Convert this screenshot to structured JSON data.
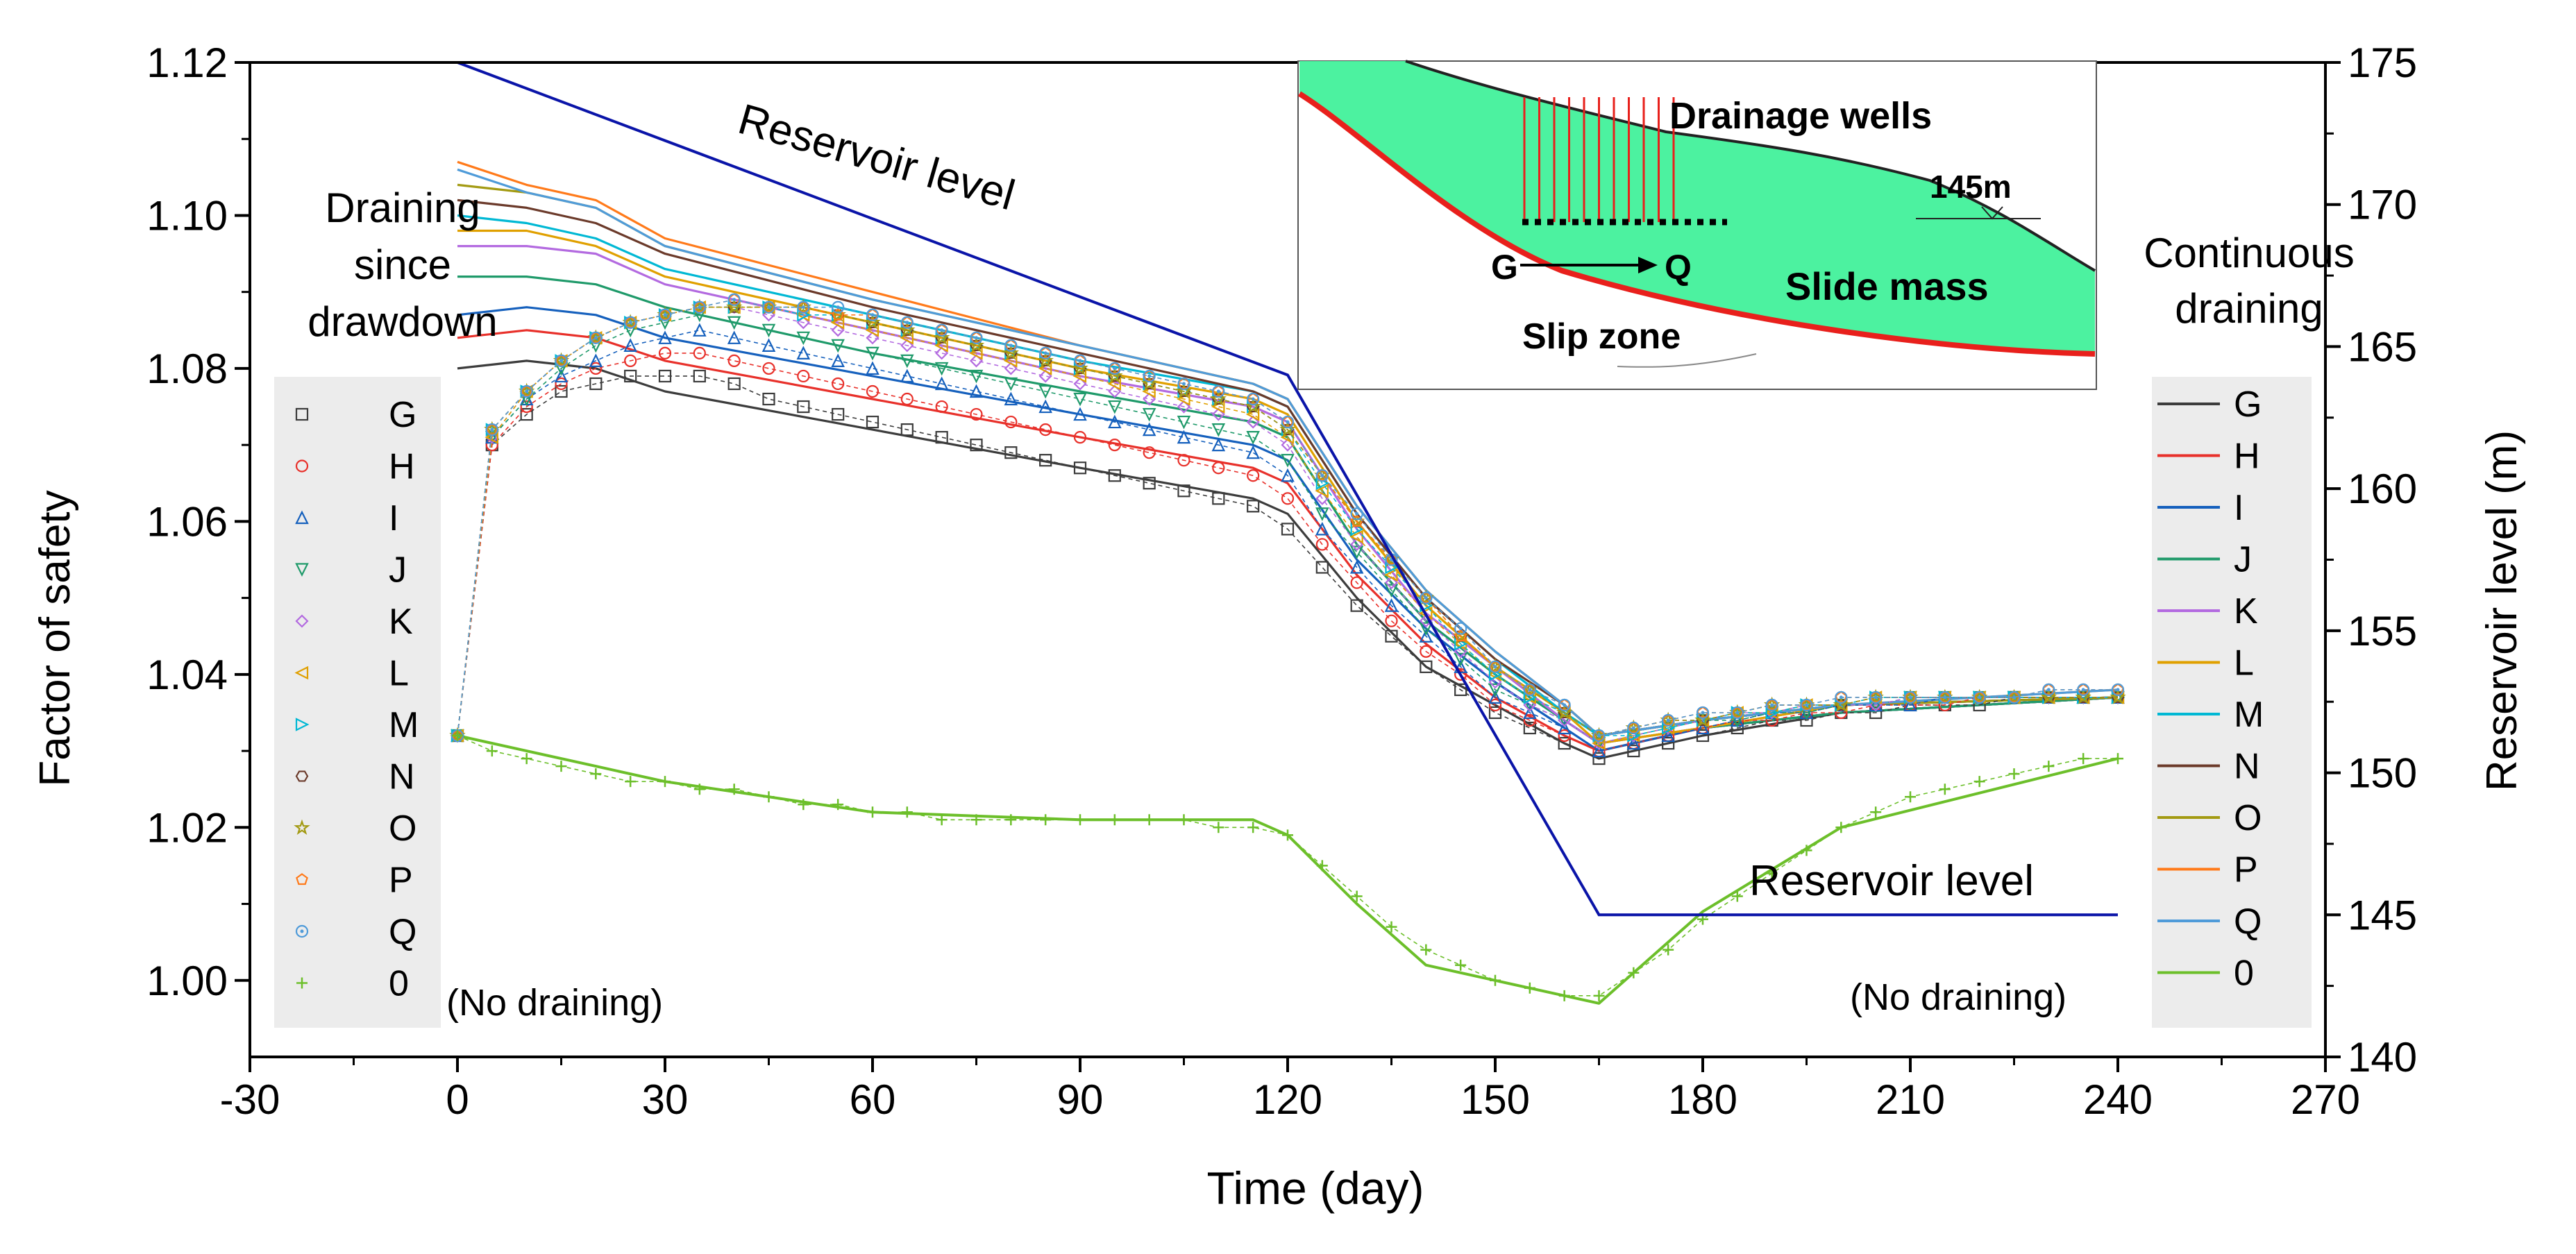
{
  "chart_data": {
    "type": "line",
    "xlabel": "Time (day)",
    "ylabel": "Factor of safety",
    "y2label": "Reservoir level (m)",
    "xlim": [
      -30,
      270
    ],
    "ylim": [
      0.99,
      1.12
    ],
    "y2lim": [
      140,
      175
    ],
    "xticks": [
      -30,
      0,
      30,
      60,
      90,
      120,
      150,
      180,
      210,
      240,
      270
    ],
    "yticks": [
      1.0,
      1.02,
      1.04,
      1.06,
      1.08,
      1.1,
      1.12
    ],
    "y2ticks": [
      140,
      145,
      150,
      155,
      160,
      165,
      170,
      175
    ],
    "grid": false,
    "colors": {
      "G": "#3c3c3c",
      "H": "#e8302a",
      "I": "#1560bd",
      "J": "#1f9a6a",
      "K": "#b36ae0",
      "L": "#e0a000",
      "M": "#00b8d4",
      "N": "#6b3a2a",
      "O": "#a39a12",
      "P": "#ff7a1a",
      "Q": "#4f9bd9",
      "0": "#6cbf2a",
      "reservoir": "#0a14a8"
    },
    "x_marker": [
      0,
      5,
      10,
      15,
      20,
      25,
      30,
      35,
      40,
      45,
      50,
      55,
      60,
      65,
      70,
      75,
      80,
      85,
      90,
      95,
      100,
      105,
      110,
      115,
      120,
      125,
      130,
      135,
      140,
      145,
      150,
      155,
      160,
      165,
      170,
      175,
      180,
      185,
      190,
      195,
      200,
      205,
      210,
      215,
      220,
      225,
      230,
      235,
      240
    ],
    "x_line": [
      0,
      10,
      20,
      30,
      60,
      90,
      115,
      120,
      130,
      140,
      150,
      160,
      165,
      180,
      200,
      240
    ],
    "series_draining_since_drawdown": [
      {
        "name": "G",
        "marker": "square",
        "values": [
          1.032,
          1.07,
          1.074,
          1.077,
          1.078,
          1.079,
          1.079,
          1.079,
          1.078,
          1.076,
          1.075,
          1.074,
          1.073,
          1.072,
          1.071,
          1.07,
          1.069,
          1.068,
          1.067,
          1.066,
          1.065,
          1.064,
          1.063,
          1.062,
          1.059,
          1.054,
          1.049,
          1.045,
          1.041,
          1.038,
          1.035,
          1.033,
          1.031,
          1.029,
          1.03,
          1.031,
          1.032,
          1.033,
          1.034,
          1.034,
          1.035,
          1.035,
          1.036,
          1.036,
          1.036,
          1.037,
          1.037,
          1.037,
          1.037
        ]
      },
      {
        "name": "H",
        "marker": "circle",
        "values": [
          1.032,
          1.07,
          1.075,
          1.078,
          1.08,
          1.081,
          1.082,
          1.082,
          1.081,
          1.08,
          1.079,
          1.078,
          1.077,
          1.076,
          1.075,
          1.074,
          1.073,
          1.072,
          1.071,
          1.07,
          1.069,
          1.068,
          1.067,
          1.066,
          1.063,
          1.057,
          1.052,
          1.047,
          1.043,
          1.04,
          1.036,
          1.034,
          1.032,
          1.03,
          1.031,
          1.032,
          1.033,
          1.034,
          1.034,
          1.035,
          1.035,
          1.036,
          1.036,
          1.036,
          1.037,
          1.037,
          1.037,
          1.037,
          1.037
        ]
      },
      {
        "name": "I",
        "marker": "triangle-up",
        "values": [
          1.032,
          1.071,
          1.076,
          1.079,
          1.081,
          1.083,
          1.084,
          1.085,
          1.084,
          1.083,
          1.082,
          1.081,
          1.08,
          1.079,
          1.078,
          1.077,
          1.076,
          1.075,
          1.074,
          1.073,
          1.072,
          1.071,
          1.07,
          1.069,
          1.066,
          1.059,
          1.054,
          1.049,
          1.045,
          1.041,
          1.037,
          1.035,
          1.033,
          1.03,
          1.031,
          1.032,
          1.033,
          1.034,
          1.035,
          1.035,
          1.036,
          1.036,
          1.036,
          1.037,
          1.037,
          1.037,
          1.037,
          1.037,
          1.037
        ]
      },
      {
        "name": "J",
        "marker": "triangle-down",
        "values": [
          1.032,
          1.071,
          1.076,
          1.08,
          1.083,
          1.085,
          1.086,
          1.087,
          1.086,
          1.085,
          1.084,
          1.083,
          1.082,
          1.081,
          1.08,
          1.079,
          1.078,
          1.077,
          1.076,
          1.075,
          1.074,
          1.073,
          1.072,
          1.071,
          1.068,
          1.061,
          1.056,
          1.051,
          1.046,
          1.042,
          1.038,
          1.036,
          1.034,
          1.031,
          1.032,
          1.033,
          1.034,
          1.034,
          1.035,
          1.035,
          1.036,
          1.036,
          1.037,
          1.037,
          1.037,
          1.037,
          1.037,
          1.037,
          1.037
        ]
      },
      {
        "name": "K",
        "marker": "diamond",
        "values": [
          1.032,
          1.071,
          1.077,
          1.081,
          1.084,
          1.086,
          1.087,
          1.088,
          1.088,
          1.087,
          1.086,
          1.085,
          1.084,
          1.083,
          1.082,
          1.081,
          1.08,
          1.079,
          1.078,
          1.077,
          1.076,
          1.075,
          1.074,
          1.073,
          1.07,
          1.063,
          1.057,
          1.052,
          1.047,
          1.043,
          1.039,
          1.036,
          1.034,
          1.031,
          1.032,
          1.033,
          1.034,
          1.035,
          1.035,
          1.036,
          1.036,
          1.036,
          1.037,
          1.037,
          1.037,
          1.037,
          1.037,
          1.037,
          1.037
        ]
      },
      {
        "name": "L",
        "marker": "triangle-left",
        "values": [
          1.032,
          1.071,
          1.077,
          1.081,
          1.084,
          1.086,
          1.087,
          1.088,
          1.088,
          1.088,
          1.087,
          1.086,
          1.085,
          1.084,
          1.083,
          1.082,
          1.081,
          1.08,
          1.079,
          1.078,
          1.077,
          1.076,
          1.075,
          1.074,
          1.071,
          1.064,
          1.058,
          1.053,
          1.048,
          1.044,
          1.04,
          1.037,
          1.035,
          1.031,
          1.032,
          1.033,
          1.034,
          1.035,
          1.035,
          1.036,
          1.036,
          1.037,
          1.037,
          1.037,
          1.037,
          1.037,
          1.037,
          1.037,
          1.037
        ]
      },
      {
        "name": "M",
        "marker": "triangle-right",
        "values": [
          1.032,
          1.072,
          1.077,
          1.081,
          1.084,
          1.086,
          1.087,
          1.088,
          1.088,
          1.088,
          1.087,
          1.087,
          1.086,
          1.085,
          1.084,
          1.083,
          1.082,
          1.081,
          1.08,
          1.079,
          1.078,
          1.077,
          1.076,
          1.075,
          1.072,
          1.065,
          1.059,
          1.054,
          1.049,
          1.044,
          1.04,
          1.037,
          1.035,
          1.032,
          1.032,
          1.033,
          1.034,
          1.035,
          1.035,
          1.036,
          1.036,
          1.037,
          1.037,
          1.037,
          1.037,
          1.037,
          1.037,
          1.037,
          1.037
        ]
      },
      {
        "name": "N",
        "marker": "hexagon",
        "values": [
          1.032,
          1.072,
          1.077,
          1.081,
          1.084,
          1.086,
          1.087,
          1.088,
          1.088,
          1.088,
          1.088,
          1.087,
          1.086,
          1.085,
          1.084,
          1.083,
          1.082,
          1.081,
          1.08,
          1.079,
          1.078,
          1.077,
          1.076,
          1.075,
          1.072,
          1.066,
          1.06,
          1.055,
          1.05,
          1.045,
          1.041,
          1.038,
          1.035,
          1.032,
          1.033,
          1.034,
          1.034,
          1.035,
          1.036,
          1.036,
          1.036,
          1.037,
          1.037,
          1.037,
          1.037,
          1.037,
          1.037,
          1.037,
          1.037
        ]
      },
      {
        "name": "O",
        "marker": "star",
        "values": [
          1.032,
          1.072,
          1.077,
          1.081,
          1.084,
          1.086,
          1.087,
          1.088,
          1.088,
          1.088,
          1.088,
          1.087,
          1.086,
          1.085,
          1.084,
          1.083,
          1.082,
          1.081,
          1.08,
          1.079,
          1.078,
          1.077,
          1.076,
          1.075,
          1.072,
          1.066,
          1.06,
          1.055,
          1.05,
          1.045,
          1.041,
          1.038,
          1.035,
          1.032,
          1.033,
          1.034,
          1.034,
          1.035,
          1.036,
          1.036,
          1.036,
          1.037,
          1.037,
          1.037,
          1.037,
          1.037,
          1.037,
          1.037,
          1.037
        ]
      },
      {
        "name": "P",
        "marker": "pentagon",
        "values": [
          1.032,
          1.072,
          1.077,
          1.081,
          1.084,
          1.086,
          1.087,
          1.088,
          1.089,
          1.088,
          1.088,
          1.087,
          1.087,
          1.086,
          1.085,
          1.084,
          1.083,
          1.082,
          1.081,
          1.08,
          1.079,
          1.078,
          1.077,
          1.076,
          1.073,
          1.066,
          1.06,
          1.055,
          1.05,
          1.045,
          1.041,
          1.038,
          1.036,
          1.032,
          1.033,
          1.034,
          1.035,
          1.035,
          1.036,
          1.036,
          1.037,
          1.037,
          1.037,
          1.037,
          1.037,
          1.037,
          1.038,
          1.038,
          1.038
        ]
      },
      {
        "name": "Q",
        "marker": "circle-dot",
        "values": [
          1.032,
          1.072,
          1.077,
          1.081,
          1.084,
          1.086,
          1.087,
          1.088,
          1.089,
          1.088,
          1.088,
          1.088,
          1.087,
          1.086,
          1.085,
          1.084,
          1.083,
          1.082,
          1.081,
          1.08,
          1.079,
          1.078,
          1.077,
          1.076,
          1.073,
          1.066,
          1.061,
          1.055,
          1.05,
          1.046,
          1.041,
          1.038,
          1.036,
          1.032,
          1.033,
          1.034,
          1.035,
          1.035,
          1.036,
          1.036,
          1.037,
          1.037,
          1.037,
          1.037,
          1.037,
          1.037,
          1.038,
          1.038,
          1.038
        ]
      },
      {
        "name": "0",
        "marker": "plus",
        "values": [
          1.032,
          1.03,
          1.029,
          1.028,
          1.027,
          1.026,
          1.026,
          1.025,
          1.025,
          1.024,
          1.023,
          1.023,
          1.022,
          1.022,
          1.021,
          1.021,
          1.021,
          1.021,
          1.021,
          1.021,
          1.021,
          1.021,
          1.02,
          1.02,
          1.019,
          1.015,
          1.011,
          1.007,
          1.004,
          1.002,
          1.0,
          0.999,
          0.998,
          0.998,
          1.001,
          1.004,
          1.008,
          1.011,
          1.014,
          1.017,
          1.02,
          1.022,
          1.024,
          1.025,
          1.026,
          1.027,
          1.028,
          1.029,
          1.029
        ]
      }
    ],
    "series_continuous_draining": [
      {
        "name": "G",
        "values": [
          1.08,
          1.081,
          1.08,
          1.077,
          1.072,
          1.067,
          1.063,
          1.061,
          1.05,
          1.041,
          1.036,
          1.031,
          1.029,
          1.032,
          1.035,
          1.037
        ]
      },
      {
        "name": "H",
        "values": [
          1.084,
          1.085,
          1.084,
          1.081,
          1.076,
          1.071,
          1.067,
          1.065,
          1.053,
          1.044,
          1.037,
          1.032,
          1.03,
          1.033,
          1.035,
          1.037
        ]
      },
      {
        "name": "I",
        "values": [
          1.087,
          1.088,
          1.087,
          1.084,
          1.079,
          1.074,
          1.07,
          1.068,
          1.055,
          1.046,
          1.039,
          1.033,
          1.03,
          1.033,
          1.035,
          1.037
        ]
      },
      {
        "name": "J",
        "values": [
          1.092,
          1.092,
          1.091,
          1.088,
          1.082,
          1.077,
          1.073,
          1.071,
          1.057,
          1.047,
          1.04,
          1.034,
          1.031,
          1.033,
          1.035,
          1.037
        ]
      },
      {
        "name": "K",
        "values": [
          1.096,
          1.096,
          1.095,
          1.091,
          1.085,
          1.079,
          1.075,
          1.073,
          1.059,
          1.048,
          1.041,
          1.034,
          1.031,
          1.033,
          1.036,
          1.037
        ]
      },
      {
        "name": "L",
        "values": [
          1.098,
          1.098,
          1.096,
          1.092,
          1.086,
          1.08,
          1.076,
          1.074,
          1.06,
          1.049,
          1.041,
          1.035,
          1.031,
          1.033,
          1.036,
          1.037
        ]
      },
      {
        "name": "M",
        "values": [
          1.1,
          1.099,
          1.097,
          1.093,
          1.087,
          1.081,
          1.077,
          1.075,
          1.061,
          1.05,
          1.042,
          1.035,
          1.032,
          1.034,
          1.036,
          1.037
        ]
      },
      {
        "name": "N",
        "values": [
          1.102,
          1.101,
          1.099,
          1.095,
          1.088,
          1.082,
          1.077,
          1.075,
          1.061,
          1.05,
          1.042,
          1.036,
          1.032,
          1.034,
          1.036,
          1.037
        ]
      },
      {
        "name": "O",
        "values": [
          1.104,
          1.103,
          1.101,
          1.096,
          1.089,
          1.083,
          1.078,
          1.076,
          1.062,
          1.051,
          1.043,
          1.036,
          1.032,
          1.034,
          1.036,
          1.037
        ]
      },
      {
        "name": "P",
        "values": [
          1.107,
          1.104,
          1.102,
          1.097,
          1.09,
          1.083,
          1.078,
          1.076,
          1.062,
          1.051,
          1.043,
          1.036,
          1.032,
          1.034,
          1.036,
          1.038
        ]
      },
      {
        "name": "Q",
        "values": [
          1.106,
          1.103,
          1.101,
          1.096,
          1.089,
          1.083,
          1.078,
          1.076,
          1.062,
          1.051,
          1.043,
          1.036,
          1.032,
          1.034,
          1.036,
          1.038
        ]
      },
      {
        "name": "0",
        "values": [
          1.032,
          1.03,
          1.028,
          1.026,
          1.022,
          1.021,
          1.021,
          1.019,
          1.01,
          1.002,
          1.0,
          0.998,
          0.997,
          1.009,
          1.02,
          1.029
        ]
      }
    ],
    "reservoir_level": {
      "name": "Reservoir level",
      "x": [
        0,
        120,
        165,
        240
      ],
      "values": [
        175,
        164,
        145,
        145
      ]
    },
    "legend_left": {
      "title_lines": [
        "Draining",
        "since",
        "drawdown"
      ],
      "entries": [
        "G",
        "H",
        "I",
        "J",
        "K",
        "L",
        "M",
        "N",
        "O",
        "P",
        "Q",
        "0"
      ]
    },
    "legend_right": {
      "title_lines": [
        "Continuous",
        "draining"
      ],
      "entries": [
        "G",
        "H",
        "I",
        "J",
        "K",
        "L",
        "M",
        "N",
        "O",
        "P",
        "Q",
        "0"
      ]
    },
    "annotations": {
      "reservoir_upper": "Reservoir level",
      "reservoir_lower": "Reservoir level",
      "no_draining_left": "(No draining)",
      "no_draining_right": "(No draining)"
    },
    "inset": {
      "drainage_wells": "Drainage wells",
      "elevation": "145m",
      "g_label": "G",
      "q_label": "Q",
      "slide_mass": "Slide mass",
      "slip_zone": "Slip zone",
      "slide_mass_color": "#4cf2a0",
      "slip_zone_color": "#e8201c",
      "well_color": "#e8201c"
    }
  }
}
